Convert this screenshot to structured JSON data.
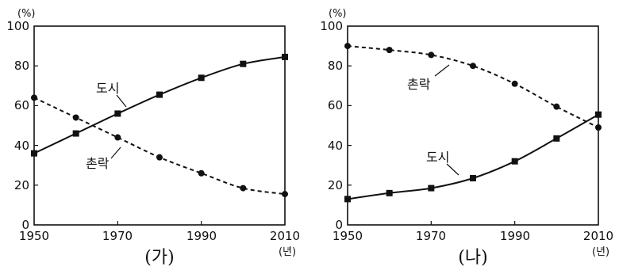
{
  "chart_data": [
    {
      "type": "line",
      "caption": "(가)",
      "x": [
        1950,
        1960,
        1970,
        1980,
        1990,
        2000,
        2010
      ],
      "xticks": [
        "1950",
        "1970",
        "1990",
        "2010"
      ],
      "yticks": [
        "0",
        "20",
        "40",
        "60",
        "80",
        "100"
      ],
      "ylim": [
        0,
        100
      ],
      "y_unit": "(%)",
      "x_unit": "(년)",
      "series": [
        {
          "name": "도시",
          "style": "solid",
          "marker": "square",
          "values": [
            36,
            46,
            56,
            65.5,
            74,
            81,
            84.5
          ]
        },
        {
          "name": "촌락",
          "style": "dashed",
          "marker": "circle",
          "values": [
            64,
            54,
            44,
            34,
            26,
            18.5,
            15.5
          ]
        }
      ]
    },
    {
      "type": "line",
      "caption": "(나)",
      "x": [
        1950,
        1960,
        1970,
        1980,
        1990,
        2000,
        2010
      ],
      "xticks": [
        "1950",
        "1970",
        "1990",
        "2010"
      ],
      "yticks": [
        "0",
        "20",
        "40",
        "60",
        "80",
        "100"
      ],
      "ylim": [
        0,
        100
      ],
      "y_unit": "(%)",
      "x_unit": "(년)",
      "series": [
        {
          "name": "도시",
          "style": "solid",
          "marker": "square",
          "values": [
            13,
            16,
            18.5,
            23.5,
            32,
            43.5,
            55.5
          ]
        },
        {
          "name": "촌락",
          "style": "dashed",
          "marker": "circle",
          "values": [
            90,
            88,
            85.5,
            80,
            71,
            59.5,
            49
          ]
        }
      ]
    }
  ],
  "colors": {
    "line": "#111111",
    "axis": "#111111"
  }
}
